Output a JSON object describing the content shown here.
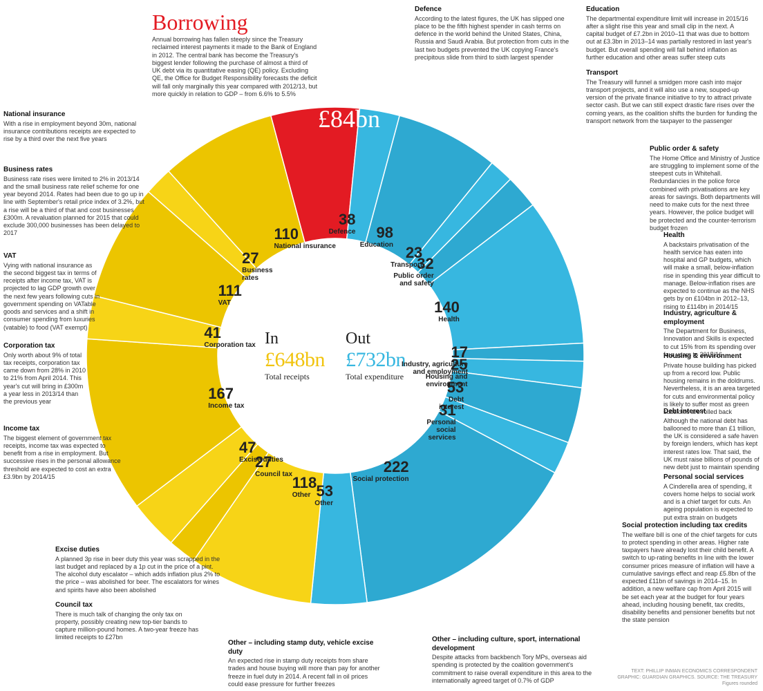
{
  "chart": {
    "type": "donut",
    "inner_radius": 170,
    "outer_radius": 360,
    "start_angle": -15,
    "background_color": "#ffffff",
    "colors": {
      "borrowing": "#e31b23",
      "in": "#f7d417",
      "in_alt": "#ecc500",
      "out": "#37b7e0",
      "out_alt": "#2ea9d1",
      "divider": "#ffffff",
      "label_text": "#1a1a1a"
    },
    "borrowing": {
      "value": 84,
      "label": "£84bn"
    },
    "in": {
      "total": 648,
      "title": "In",
      "amount": "£648bn",
      "sub": "Total receipts",
      "slices": [
        {
          "key": "national_insurance",
          "label": "National insurance",
          "value": 110
        },
        {
          "key": "business_rates",
          "label": "Business\nrates",
          "value": 27
        },
        {
          "key": "vat",
          "label": "VAT",
          "value": 111
        },
        {
          "key": "corporation_tax",
          "label": "Corporation tax",
          "value": 41
        },
        {
          "key": "income_tax",
          "label": "Income tax",
          "value": 167
        },
        {
          "key": "excise_duties",
          "label": "Excise duties",
          "value": 47
        },
        {
          "key": "council_tax",
          "label": "Council tax",
          "value": 27
        },
        {
          "key": "other_in",
          "label": "Other",
          "value": 118
        }
      ]
    },
    "out": {
      "total": 732,
      "title": "Out",
      "amount": "£732bn",
      "sub": "Total expenditure",
      "slices": [
        {
          "key": "defence",
          "label": "Defence",
          "value": 38
        },
        {
          "key": "education",
          "label": "Education",
          "value": 98
        },
        {
          "key": "transport",
          "label": "Transport",
          "value": 23
        },
        {
          "key": "public_order",
          "label": "Public order\nand safety",
          "value": 32
        },
        {
          "key": "health",
          "label": "Health",
          "value": 140
        },
        {
          "key": "industry",
          "label": "Industry, agriculture\nand employment",
          "value": 17
        },
        {
          "key": "housing",
          "label": "Housing and\nenvironment",
          "value": 25
        },
        {
          "key": "debt_interest",
          "label": "Debt\ninterest",
          "value": 53
        },
        {
          "key": "pss",
          "label": "Personal\nsocial\nservices",
          "value": 31
        },
        {
          "key": "social_protection",
          "label": "Social protection",
          "value": 222
        },
        {
          "key": "other_out",
          "label": "Other",
          "value": 53
        }
      ]
    }
  },
  "borrowing_heading": {
    "title": "Borrowing",
    "title_color": "#e31b23",
    "title_fontsize": 32,
    "body": "Annual borrowing has fallen steeply since the Treasury reclaimed interest payments it made to the Bank of England in 2012. The central bank has become the Treasury's biggest lender following the purchase of almost a third of UK debt via its quantitative easing (QE) policy. Excluding QE, the Office for Budget Responsibility forecasts the deficit will fall only marginally this year compared with 2012/13, but more quickly in relation to GDP – from 6.6% to 5.5%"
  },
  "notes_in": [
    {
      "key": "national_insurance",
      "title": "National insurance",
      "body": "With a rise in employment beyond 30m, national insurance contributions receipts are expected to rise by a third over the next five years"
    },
    {
      "key": "business_rates",
      "title": "Business rates",
      "body": "Business rate rises were limited to 2% in 2013/14 and the small business rate relief scheme for one year beyond 2014. Rates had been due to go up in line with September's retail price index of 3.2%, but a rise will be a third of that and cost businesses £300m. A revaluation planned for 2015 that could exclude 300,000 businesses has been delayed to 2017"
    },
    {
      "key": "vat",
      "title": "VAT",
      "body": "Vying with national insurance as the second biggest tax in terms of receipts after income tax, VAT is projected to lag GDP growth over the next few years following cuts in government spending on VATable goods and services and a shift in consumer spending from luxuries (vatable) to food (VAT exempt)"
    },
    {
      "key": "corporation_tax",
      "title": "Corporation tax",
      "body": "Only worth about 9% of total tax receipts, corporation tax came down from 28% in 2010 to 21% from April 2014. This year's cut will bring in £300m a year less in 2013/14 than the previous year"
    },
    {
      "key": "income_tax",
      "title": "Income tax",
      "body": "The biggest element of government tax receipts, income tax was expected to benefit from a rise in employment. But successive rises in the personal allowance threshold are expected to cost an extra £3.9bn by 2014/15"
    },
    {
      "key": "excise_duties",
      "title": "Excise duties",
      "body": "A planned 3p rise in beer duty this year was scrapped in the last budget and replaced by a 1p cut in the price of a pint. The alcohol duty escalator – which adds inflation plus 2% to the price – was abolished for beer. The escalators for wines and spirits have also been abolished"
    },
    {
      "key": "council_tax",
      "title": "Council tax",
      "body": "There is much talk of changing the only tax on property, possibly creating new top-tier bands to capture million-pound homes. A two-year freeze has limited receipts to £27bn"
    },
    {
      "key": "other_in",
      "title": "Other – including stamp duty, vehicle excise duty",
      "body": "An expected rise in stamp duty receipts from share trades and house buying will more than pay for another freeze in fuel duty in 2014. A recent fall in oil prices could ease pressure for further freezes"
    }
  ],
  "notes_out": [
    {
      "key": "defence",
      "title": "Defence",
      "body": "According to the latest figures, the UK has slipped one place to be the fifth highest spender in cash terms on defence in the world behind the United States, China, Russia and Saudi Arabia. But protection from cuts in the last two budgets prevented the UK copying France's precipitous slide from third to sixth largest spender"
    },
    {
      "key": "education",
      "title": "Education",
      "body": "The departmental expenditure limit will increase in 2015/16 after a slight rise this year and small clip in the next. A capital budget of £7.2bn in 2010–11 that was due to bottom out at £3.3bn in 2013–14 was partially restored in last year's budget. But overall spending will fall behind inflation as further education and other areas suffer steep cuts"
    },
    {
      "key": "transport",
      "title": "Transport",
      "body": "The Treasury will funnel a smidgen more cash into major transport projects, and it will also use a new, souped-up version of the private finance initiative to try to attract private sector cash. But we can still expect drastic fare rises over the coming years, as the coalition shifts the burden for funding the transport network from the taxpayer to the passenger"
    },
    {
      "key": "public_order",
      "title": "Public order & safety",
      "body": "The Home Office and Ministry of Justice are struggling to implement some of the steepest cuts in Whitehall. Redundancies in the police force combined with privatisations are key areas for savings. Both departments will need to make cuts for the next three years. However, the police budget will be protected and the counter-terrorism budget frozen"
    },
    {
      "key": "health",
      "title": "Health",
      "body": "A backstairs privatisation of the health service has eaten into hospital and GP budgets, which will make a small, below-inflation rise in spending this year difficult to manage. Below-inflation rises are expected to continue as the NHS gets by on £104bn in 2012–13, rising to £114bn in 2014/15"
    },
    {
      "key": "industry",
      "title": "Industry, agriculture & employment",
      "body": "The Department for Business, Innovation and Skills is expected to cut 15% from its spending over four years to 2015/16"
    },
    {
      "key": "housing",
      "title": "Housing & environment",
      "body": "Private house building has picked up from a record low. Public housing remains in the doldrums. Nevertheless, it is an area targeted for cuts and environmental policy is likely to suffer most as green subsidies are rolled back"
    },
    {
      "key": "debt_interest",
      "title": "Debt interest",
      "body": "Although the national debt has ballooned to more than £1 trillion, the UK is considered a safe haven by foreign lenders, which has kept interest rates low. That said, the UK must raise billions of pounds of new debt just to maintain spending"
    },
    {
      "key": "pss",
      "title": "Personal social services",
      "body": "A Cinderella area of spending, it covers home helps to social work and is a chief target for cuts. An ageing population is expected to put extra strain on budgets"
    },
    {
      "key": "social_protection",
      "title": "Social protection including tax credits",
      "body": "The welfare bill is one of the chief targets for cuts to protect spending in other areas. Higher rate taxpayers have already lost their child benefit. A switch to up-rating benefits in line with the lower consumer prices measure of inflation will have a cumulative savings effect and reap £5.8bn of the expected £11bn of savings in 2014–15. In addition, a new welfare cap from April 2015 will be set each year at the budget for four years ahead, including housing benefit, tax credits, disability benefits and pensioner benefits but not the state pension"
    },
    {
      "key": "other_out",
      "title": "Other – including culture, sport, international development",
      "body": "Despite attacks from backbench Tory MPs, overseas aid spending is protected by the coalition government's commitment to raise overall expenditure in this area to the internationally agreed target of 0.7% of GDP"
    }
  ],
  "credit": {
    "line1": "TEXT: PHILLIP INMAN ECONOMICS CORRESPONDENT",
    "line2": "GRAPHIC: GUARDIAN GRAPHICS. SOURCE: THE TREASURY",
    "line3": "Figures rounded"
  }
}
